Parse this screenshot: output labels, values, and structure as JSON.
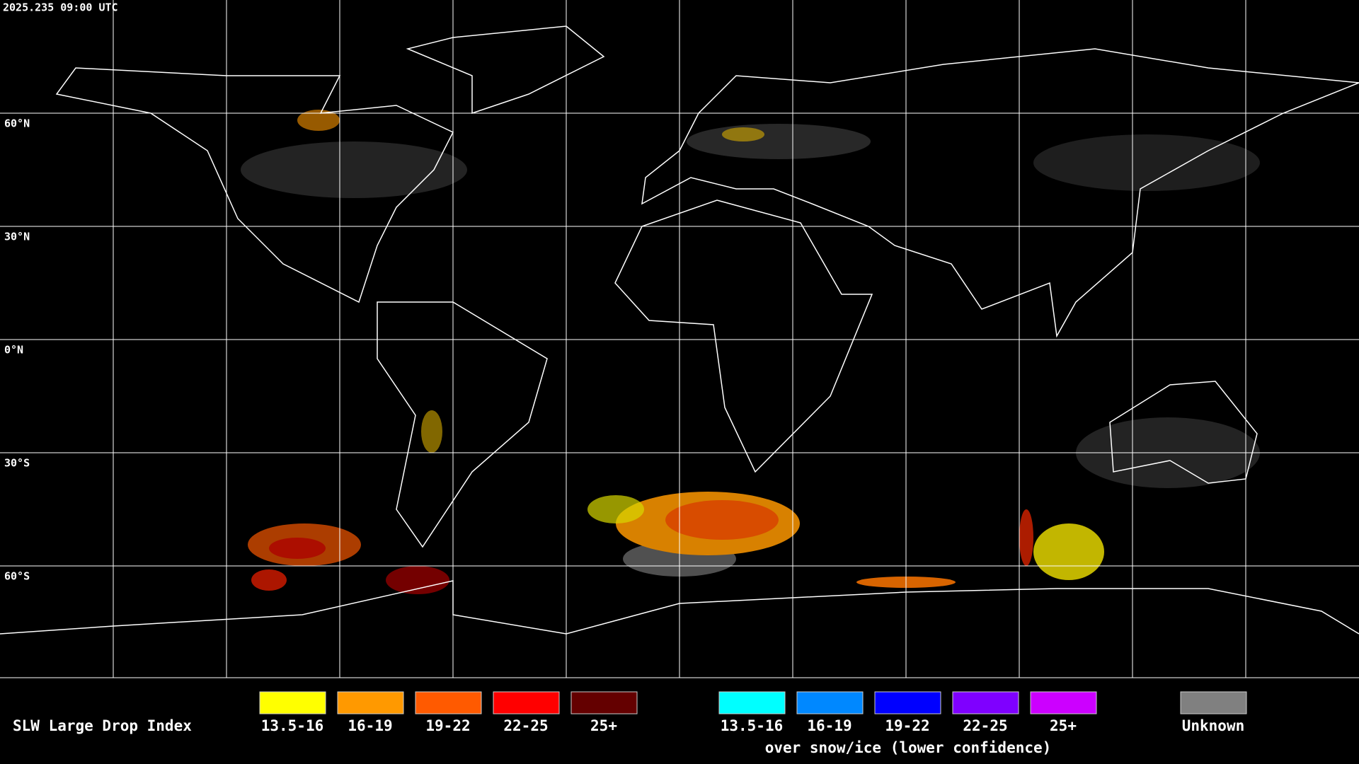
{
  "timestamp": "2025.235 09:00 UTC",
  "latitude_labels": [
    "60°N",
    "30°N",
    "0°N",
    "30°S",
    "60°S"
  ],
  "legend": {
    "title": "SLW Large Drop Index",
    "items": [
      {
        "label": "13.5-16",
        "color": "#ffff00"
      },
      {
        "label": "16-19",
        "color": "#ff9900"
      },
      {
        "label": "19-22",
        "color": "#ff5a00"
      },
      {
        "label": "22-25",
        "color": "#ff0000"
      },
      {
        "label": "25+",
        "color": "#640000"
      }
    ],
    "snow_items": [
      {
        "label": "13.5-16",
        "color": "#00ffff"
      },
      {
        "label": "16-19",
        "color": "#0088ff"
      },
      {
        "label": "19-22",
        "color": "#0000ff"
      },
      {
        "label": "22-25",
        "color": "#7f00ff"
      },
      {
        "label": "25+",
        "color": "#cc00ff"
      }
    ],
    "snow_caption": "over snow/ice (lower confidence)",
    "unknown": {
      "label": "Unknown",
      "color": "#808080"
    }
  }
}
